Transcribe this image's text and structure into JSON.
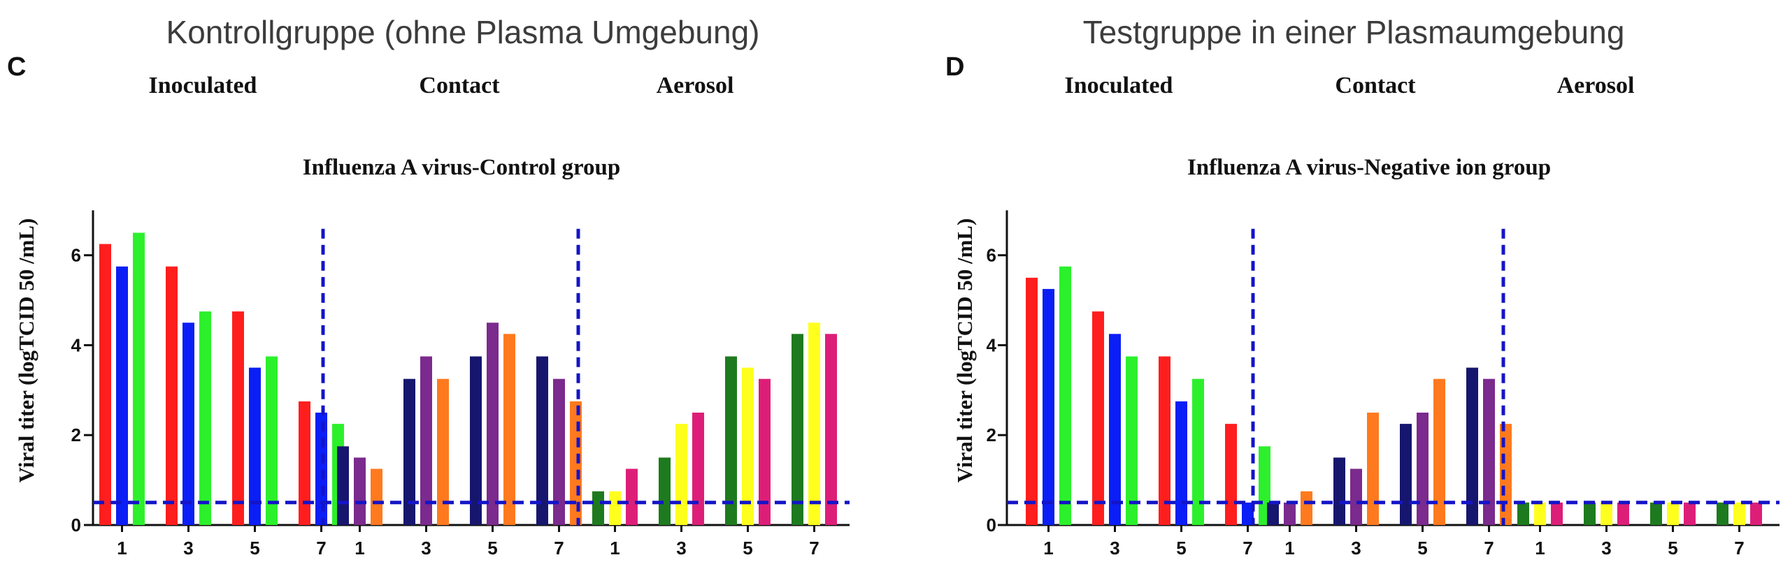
{
  "headers": {
    "left": "Kontrollgruppe (ohne Plasma Umgebung)",
    "right": "Testgruppe in einer Plasmaumgebung"
  },
  "chart_data": [
    {
      "type": "bar",
      "panel_label": "C",
      "title": "Influenza A virus-Control group",
      "ylabel": "Viral titer (logTCID 50 /mL)",
      "xlabel": "",
      "ylim": [
        0,
        7
      ],
      "yticks": [
        0,
        2,
        4,
        6
      ],
      "detection_limit": 0.5,
      "groups": [
        {
          "name": "Inoculated",
          "categories": [
            "1",
            "3",
            "5",
            "7"
          ],
          "series": [
            {
              "color": "#ff1e1e",
              "values": [
                6.25,
                5.75,
                4.75,
                2.75
              ]
            },
            {
              "color": "#0b1ef5",
              "values": [
                5.75,
                4.5,
                3.5,
                2.5
              ]
            },
            {
              "color": "#2cf02c",
              "values": [
                6.5,
                4.75,
                3.75,
                2.25
              ]
            }
          ]
        },
        {
          "name": "Contact",
          "categories": [
            "1",
            "3",
            "5",
            "7"
          ],
          "series": [
            {
              "color": "#16166e",
              "values": [
                1.75,
                3.25,
                3.75,
                3.75
              ]
            },
            {
              "color": "#7b2a8e",
              "values": [
                1.5,
                3.75,
                4.5,
                3.25
              ]
            },
            {
              "color": "#ff7a1e",
              "values": [
                1.25,
                3.25,
                4.25,
                2.75
              ]
            }
          ]
        },
        {
          "name": "Aerosol",
          "categories": [
            "1",
            "3",
            "5",
            "7"
          ],
          "series": [
            {
              "color": "#1e7a1e",
              "values": [
                0.75,
                1.5,
                3.75,
                4.25
              ]
            },
            {
              "color": "#ffff1e",
              "values": [
                0.75,
                2.25,
                3.5,
                4.5
              ]
            },
            {
              "color": "#dd1e78",
              "values": [
                1.25,
                2.5,
                3.25,
                4.25
              ]
            }
          ]
        }
      ]
    },
    {
      "type": "bar",
      "panel_label": "D",
      "title": "Influenza A virus-Negative ion group",
      "ylabel": "Viral titer (logTCID 50 /mL)",
      "xlabel": "",
      "ylim": [
        0,
        7
      ],
      "yticks": [
        0,
        2,
        4,
        6
      ],
      "detection_limit": 0.5,
      "groups": [
        {
          "name": "Inoculated",
          "categories": [
            "1",
            "3",
            "5",
            "7"
          ],
          "series": [
            {
              "color": "#ff1e1e",
              "values": [
                5.5,
                4.75,
                3.75,
                2.25
              ]
            },
            {
              "color": "#0b1ef5",
              "values": [
                5.25,
                4.25,
                2.75,
                0.5
              ]
            },
            {
              "color": "#2cf02c",
              "values": [
                5.75,
                3.75,
                3.25,
                1.75
              ]
            }
          ]
        },
        {
          "name": "Contact",
          "categories": [
            "1",
            "3",
            "5",
            "7"
          ],
          "series": [
            {
              "color": "#16166e",
              "values": [
                0.5,
                1.5,
                2.25,
                3.5
              ]
            },
            {
              "color": "#7b2a8e",
              "values": [
                0.5,
                1.25,
                2.5,
                3.25
              ]
            },
            {
              "color": "#ff7a1e",
              "values": [
                0.75,
                2.5,
                3.25,
                2.25
              ]
            }
          ]
        },
        {
          "name": "Aerosol",
          "categories": [
            "1",
            "3",
            "5",
            "7"
          ],
          "series": [
            {
              "color": "#1e7a1e",
              "values": [
                0.5,
                0.5,
                0.5,
                0.5
              ]
            },
            {
              "color": "#ffff1e",
              "values": [
                0.5,
                0.5,
                0.5,
                0.5
              ]
            },
            {
              "color": "#dd1e78",
              "values": [
                0.5,
                0.5,
                0.5,
                0.5
              ]
            }
          ]
        }
      ]
    }
  ]
}
